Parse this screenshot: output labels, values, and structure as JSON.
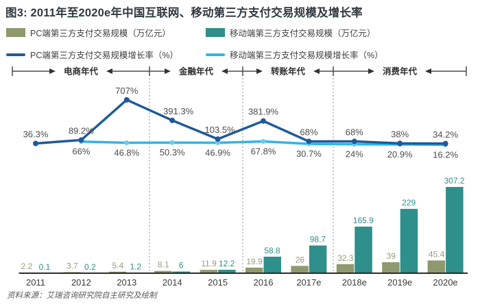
{
  "title": "图3: 2011年至2020e年中国互联网、移动第三方支付交易规模及增长率",
  "legend": {
    "pc_volume": "PC端第三方支付交易规模（万亿元）",
    "mobile_volume": "移动端第三方支付交易规模（万亿元）",
    "pc_growth": "PC端第三方支付交易规模增长率（%）",
    "mobile_growth": "移动端第三方支付交易规模增长率（%）"
  },
  "eras": [
    "电商年代",
    "金融年代",
    "转账年代",
    "消费年代"
  ],
  "source": "资料来源：艾瑞咨询研究院自主研究及绘制",
  "colors": {
    "pc_bar": "#8e9a6e",
    "mobile_bar": "#2e8f8b",
    "pc_line": "#1d5a99",
    "mobile_line": "#2ab7ec",
    "mobile_dot": "#6ccaf3",
    "label_gray": "#4d4d4d",
    "pc_label": "#98997f",
    "title_color": "#31383f",
    "axis": "#2b2b2b"
  },
  "chart_data": {
    "type": "combo-bar-line",
    "categories": [
      "2011",
      "2012",
      "2013",
      "2014",
      "2015",
      "2016",
      "2017e",
      "2018e",
      "2019e",
      "2020e"
    ],
    "series": [
      {
        "name": "PC端第三方支付交易规模",
        "type": "bar",
        "unit": "万亿元",
        "values": [
          2.2,
          3.7,
          5.4,
          8.1,
          11.9,
          19.9,
          26,
          32.3,
          39,
          45.4
        ]
      },
      {
        "name": "移动端第三方支付交易规模",
        "type": "bar",
        "unit": "万亿元",
        "values": [
          0.1,
          0.2,
          1.2,
          6,
          12.2,
          58.8,
          98.7,
          165.9,
          229,
          307.2
        ]
      },
      {
        "name": "PC端第三方支付交易规模增长率",
        "type": "line",
        "unit": "%",
        "values": [
          36.3,
          89.2,
          707,
          391.3,
          103.5,
          381.9,
          68,
          68,
          38,
          34.2
        ]
      },
      {
        "name": "移动端第三方支付交易规模增长率",
        "type": "line",
        "unit": "%",
        "values": [
          null,
          66,
          46.8,
          50.3,
          46.9,
          67.8,
          30.7,
          24,
          20.9,
          16.2
        ]
      }
    ],
    "era_bands": [
      {
        "label": "电商年代",
        "span": [
          "2011",
          "2013"
        ]
      },
      {
        "label": "金融年代",
        "span": [
          "2014",
          "2015"
        ]
      },
      {
        "label": "转账年代",
        "span": [
          "2016",
          "2017e"
        ]
      },
      {
        "label": "消费年代",
        "span": [
          "2018e",
          "2020e"
        ]
      }
    ],
    "legend_position": "top",
    "grid": false
  }
}
